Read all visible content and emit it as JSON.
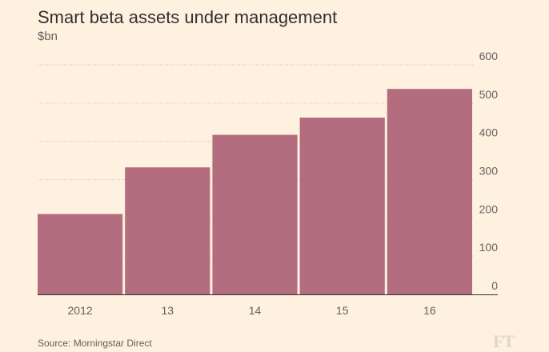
{
  "title": "Smart beta assets under management",
  "subtitle": "$bn",
  "source": "Source: Morningstar Direct",
  "logo": "FT",
  "colors": {
    "background": "#fff1e0",
    "bar": "#b36d7e",
    "grid": "#c8bfb5",
    "axis": "#33302e",
    "text": "#66605c"
  },
  "chart_data": {
    "type": "bar",
    "categories": [
      "2012",
      "13",
      "14",
      "15",
      "16"
    ],
    "values": [
      210,
      332,
      417,
      462,
      537
    ],
    "ylim": [
      0,
      600
    ],
    "yticks": [
      0,
      100,
      200,
      300,
      400,
      500,
      600
    ],
    "y_axis_side": "right",
    "grid": true,
    "title": "Smart beta assets under management",
    "ylabel": "$bn",
    "xlabel": ""
  }
}
